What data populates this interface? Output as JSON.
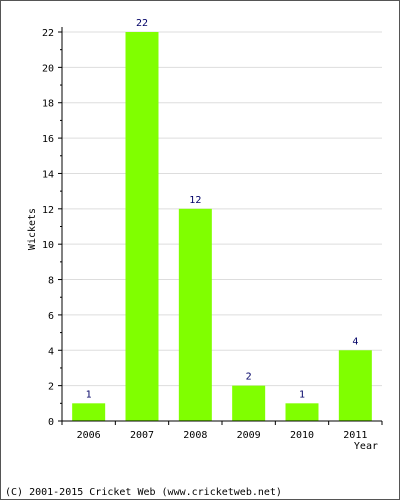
{
  "chart_data": {
    "type": "bar",
    "categories": [
      "2006",
      "2007",
      "2008",
      "2009",
      "2010",
      "2011"
    ],
    "values": [
      1,
      22,
      12,
      2,
      1,
      4
    ],
    "xlabel": "Year",
    "ylabel": "Wickets",
    "ylim": [
      0,
      22
    ],
    "yticks": [
      0,
      2,
      4,
      6,
      8,
      10,
      12,
      14,
      16,
      18,
      20,
      22
    ],
    "grid": true,
    "bar_color": "#80ff00",
    "data_label_color": "#000066",
    "grid_color": "#dddddd"
  },
  "footer": {
    "copyright": "(C) 2001-2015 Cricket Web (www.cricketweb.net)"
  }
}
